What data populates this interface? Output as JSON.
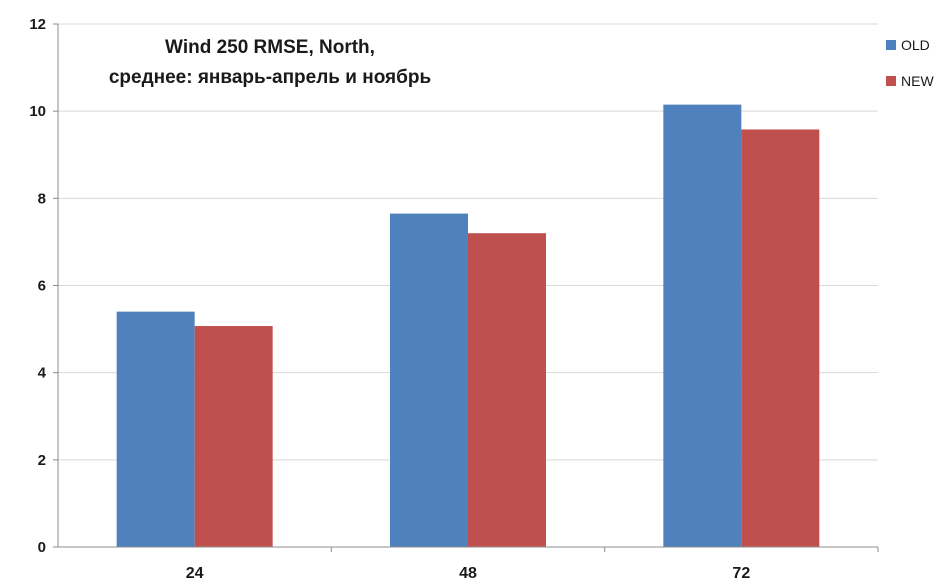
{
  "chart_data": {
    "type": "bar",
    "title_lines": [
      "Wind 250 RMSE, North,",
      "среднее: январь-апрель и ноябрь"
    ],
    "categories": [
      "24",
      "48",
      "72"
    ],
    "series": [
      {
        "name": "OLD",
        "color": "#4f81bd",
        "values": [
          5.4,
          7.65,
          10.15
        ]
      },
      {
        "name": "NEW",
        "color": "#c0504d",
        "values": [
          5.07,
          7.2,
          9.58
        ]
      }
    ],
    "ylim": [
      0,
      12
    ],
    "yticks": [
      0,
      2,
      4,
      6,
      8,
      10,
      12
    ],
    "grid": true,
    "legend": "top-right",
    "xlabel": "",
    "ylabel": ""
  }
}
